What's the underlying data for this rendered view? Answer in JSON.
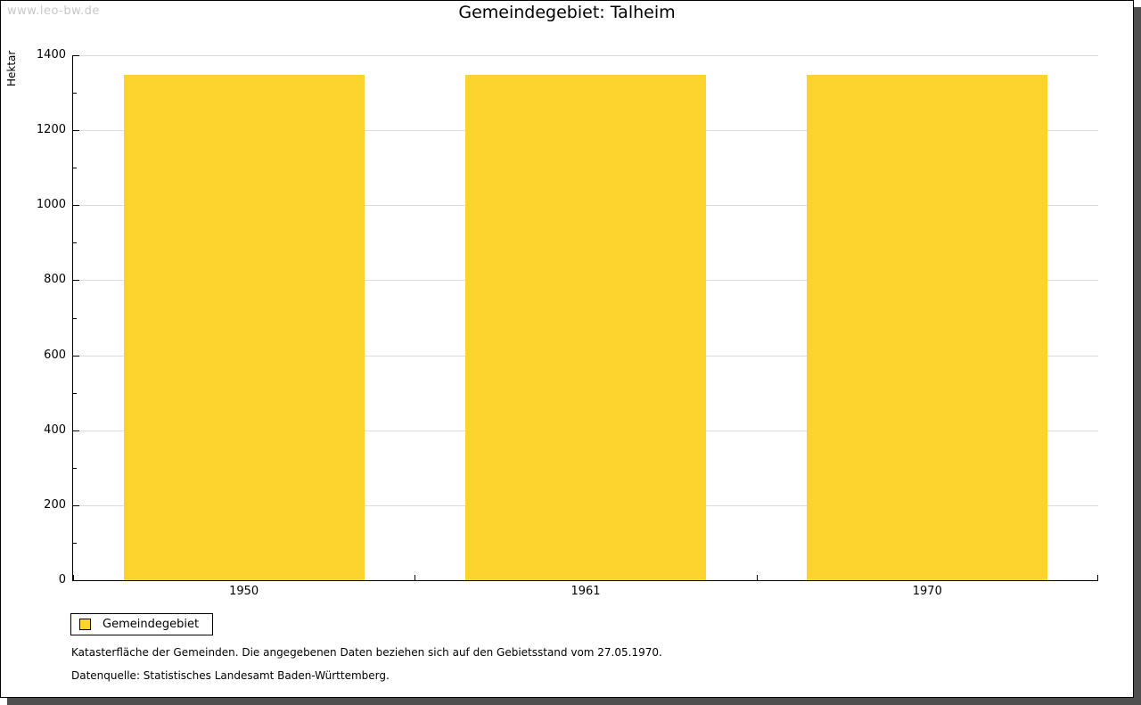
{
  "window": {
    "watermark": "www.leo-bw.de"
  },
  "title": "Gemeindegebiet: Talheim",
  "chart_data": {
    "type": "bar",
    "title": "Gemeindegebiet: Talheim",
    "categories": [
      "1950",
      "1961",
      "1970"
    ],
    "series": [
      {
        "name": "Gemeindegebiet",
        "values": [
          1347,
          1347,
          1347
        ]
      }
    ],
    "xlabel": "",
    "ylabel": "Hektar",
    "ylim": [
      0,
      1400
    ],
    "ytick_step": 200,
    "yminor_step": 100,
    "grid": true,
    "bar_color": "#FCD42D",
    "legend_position": "bottom-left"
  },
  "legend": {
    "items": [
      {
        "label": "Gemeindegebiet",
        "color": "#FCD42D"
      }
    ]
  },
  "footnotes": [
    "Katasterfläche der Gemeinden. Die angegebenen Daten beziehen sich auf den Gebietsstand vom 27.05.1970.",
    "Datenquelle: Statistisches Landesamt Baden-Württemberg."
  ]
}
